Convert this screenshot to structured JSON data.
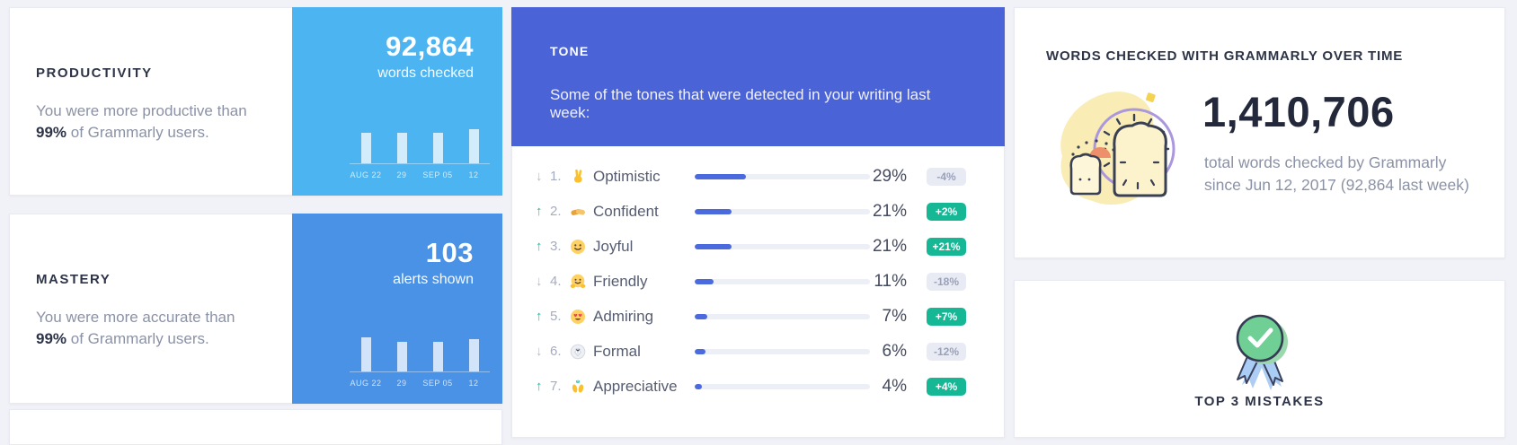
{
  "glyphs": {
    "up": "↑",
    "down": "↓"
  },
  "colors": {
    "page_bg": "#f1f2f7",
    "stat_blue_light": "#4cb4f0",
    "stat_blue_mid": "#4a92e6",
    "tone_header": "#4a63d6",
    "tone_bar_fill": "#4a6ade",
    "badge_positive": "#16b795",
    "badge_negative_bg": "#e9ebf4"
  },
  "cards": {
    "productivity": {
      "title": "PRODUCTIVITY",
      "line1": "You were more productive than",
      "highlight": "99%",
      "line2": " of Grammarly users.",
      "stat_value": "92,864",
      "stat_label": "words checked"
    },
    "mastery": {
      "title": "MASTERY",
      "line1": "You were more accurate than",
      "highlight": "99%",
      "line2": " of Grammarly users.",
      "stat_value": "103",
      "stat_label": "alerts shown"
    },
    "tone": {
      "title": "TONE",
      "subtitle": "Some of the tones that were detected in your writing last week:",
      "items": [
        {
          "rank": "1.",
          "trend": "down",
          "emoji": "victory-hand",
          "label": "Optimistic",
          "value": 29,
          "value_label": "29%",
          "change": "-4%",
          "change_positive": false
        },
        {
          "rank": "2.",
          "trend": "up",
          "emoji": "handshake",
          "label": "Confident",
          "value": 21,
          "value_label": "21%",
          "change": "+2%",
          "change_positive": true
        },
        {
          "rank": "3.",
          "trend": "up",
          "emoji": "smiling-face",
          "label": "Joyful",
          "value": 21,
          "value_label": "21%",
          "change": "+21%",
          "change_positive": true
        },
        {
          "rank": "4.",
          "trend": "down",
          "emoji": "hugging-face",
          "label": "Friendly",
          "value": 11,
          "value_label": "11%",
          "change": "-18%",
          "change_positive": false
        },
        {
          "rank": "5.",
          "trend": "up",
          "emoji": "heart-eyes",
          "label": "Admiring",
          "value": 7,
          "value_label": "7%",
          "change": "+7%",
          "change_positive": true
        },
        {
          "rank": "6.",
          "trend": "down",
          "emoji": "tuxedo",
          "label": "Formal",
          "value": 6,
          "value_label": "6%",
          "change": "-12%",
          "change_positive": false
        },
        {
          "rank": "7.",
          "trend": "up",
          "emoji": "raising-hands",
          "label": "Appreciative",
          "value": 4,
          "value_label": "4%",
          "change": "+4%",
          "change_positive": true
        }
      ]
    },
    "words_over_time": {
      "title": "WORDS CHECKED WITH GRAMMARLY OVER TIME",
      "total": "1,410,706",
      "caption1": "total words checked by Grammarly",
      "caption2": "since Jun 12, 2017 (92,864 last week)",
      "illustration": "toast-clock-illustration"
    },
    "top_mistakes": {
      "title": "TOP 3 MISTAKES",
      "icon": "ribbon-medal-icon"
    }
  },
  "chart_data": [
    {
      "type": "bar",
      "title": "words checked per week (92,864 last week)",
      "categories": [
        "AUG 22",
        "29",
        "SEP 05",
        "12"
      ],
      "values": [
        0.9,
        0.9,
        0.9,
        1.0
      ],
      "xlabel": "week",
      "ylabel": "",
      "note": "mini sparkline bars, y-axis unlabeled; values are relative heights"
    },
    {
      "type": "bar",
      "title": "alerts shown per week (103 last week)",
      "categories": [
        "AUG 22",
        "29",
        "SEP 05",
        "12"
      ],
      "values": [
        1.0,
        0.87,
        0.87,
        0.95
      ],
      "xlabel": "week",
      "ylabel": "",
      "note": "mini sparkline bars, y-axis unlabeled; values are relative heights"
    },
    {
      "type": "bar",
      "orientation": "horizontal",
      "title": "TONE — tones detected in your writing last week",
      "categories": [
        "Optimistic",
        "Confident",
        "Joyful",
        "Friendly",
        "Admiring",
        "Formal",
        "Appreciative"
      ],
      "values": [
        29,
        21,
        21,
        11,
        7,
        6,
        4
      ],
      "changes": [
        "-4%",
        "+2%",
        "+21%",
        "-18%",
        "+7%",
        "-12%",
        "+4%"
      ],
      "trends": [
        "down",
        "up",
        "up",
        "down",
        "up",
        "down",
        "up"
      ],
      "xlim": [
        0,
        100
      ],
      "legend": "none",
      "grid": false
    }
  ]
}
